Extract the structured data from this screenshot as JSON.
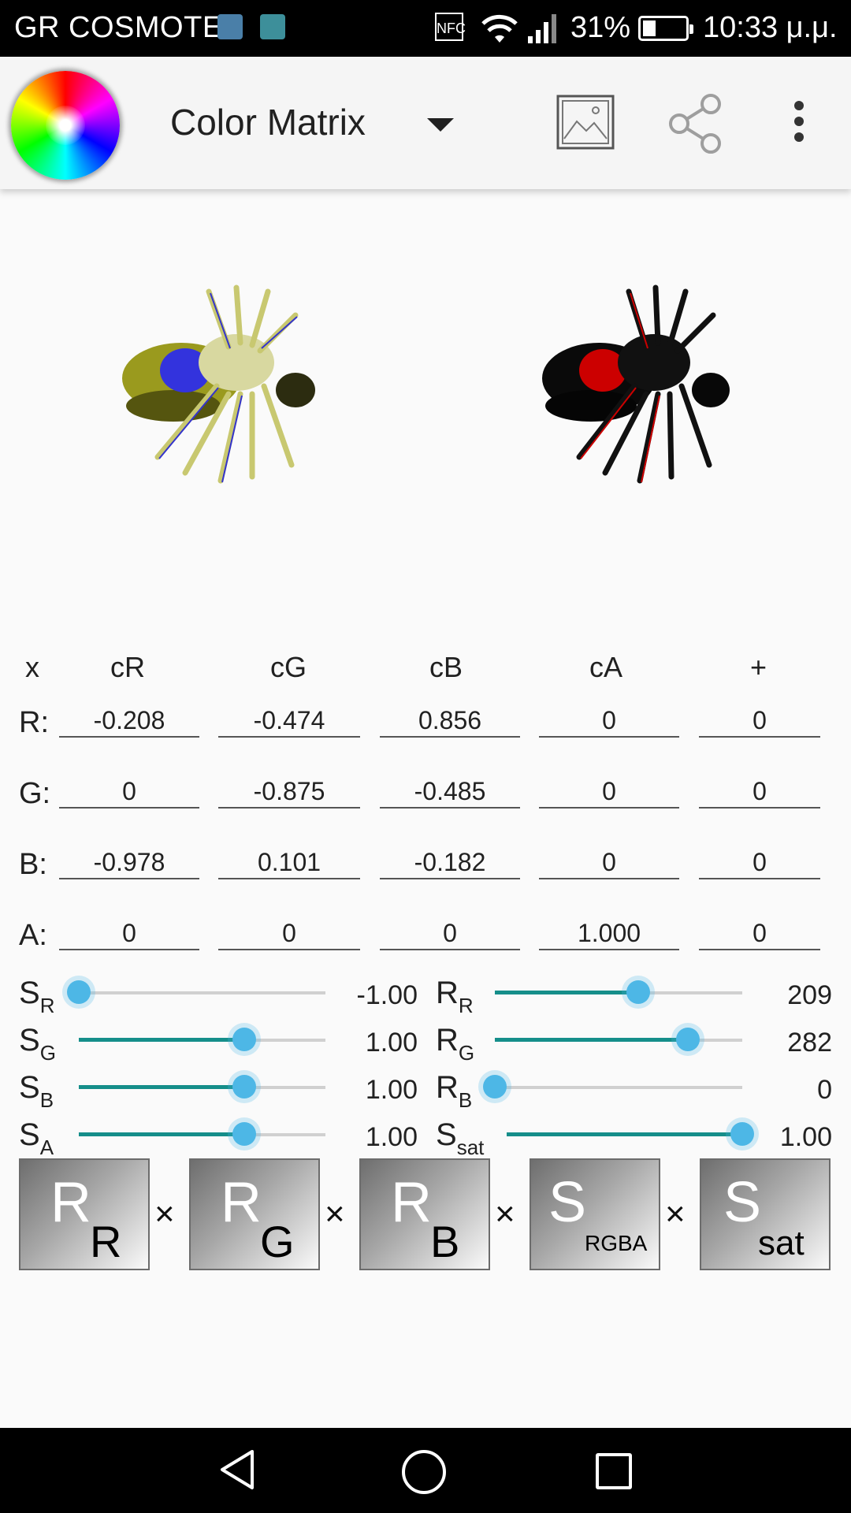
{
  "status_bar": {
    "carrier": "GR COSMOTE",
    "nfc": "NFC",
    "battery_percent": "31%",
    "time": "10:33 μ.μ.",
    "icons": [
      "app-notification-icon",
      "gallery-notification-icon",
      "nfc-icon",
      "wifi-icon",
      "signal-icon",
      "battery-icon"
    ]
  },
  "toolbar": {
    "title": "Color Matrix",
    "icons": [
      "color-wheel-logo",
      "dropdown-arrow-icon",
      "image-icon",
      "share-icon",
      "more-vert-icon"
    ]
  },
  "matrix": {
    "headers": [
      "x",
      "cR",
      "cG",
      "cB",
      "cA",
      "+"
    ],
    "rows": [
      {
        "label": "R:",
        "values": [
          "-0.208",
          "-0.474",
          "0.856",
          "0",
          "0"
        ]
      },
      {
        "label": "G:",
        "values": [
          "0",
          "-0.875",
          "-0.485",
          "0",
          "0"
        ]
      },
      {
        "label": "B:",
        "values": [
          "-0.978",
          "0.101",
          "-0.182",
          "0",
          "0"
        ]
      },
      {
        "label": "A:",
        "values": [
          "0",
          "0",
          "0",
          "1.000",
          "0"
        ]
      }
    ]
  },
  "sliders": {
    "left": [
      {
        "main": "S",
        "sub": "R",
        "value": "-1.00",
        "fraction": 0.0
      },
      {
        "main": "S",
        "sub": "G",
        "value": "1.00",
        "fraction": 0.67
      },
      {
        "main": "S",
        "sub": "B",
        "value": "1.00",
        "fraction": 0.67
      },
      {
        "main": "S",
        "sub": "A",
        "value": "1.00",
        "fraction": 0.67
      }
    ],
    "right": [
      {
        "main": "R",
        "sub": "R",
        "value": "209",
        "fraction": 0.58
      },
      {
        "main": "R",
        "sub": "G",
        "value": "282",
        "fraction": 0.78
      },
      {
        "main": "R",
        "sub": "B",
        "value": "0",
        "fraction": 0.0
      },
      {
        "main": "S",
        "sub": "sat",
        "value": "1.00",
        "fraction": 1.0
      }
    ]
  },
  "buttons": [
    {
      "main": "R",
      "sub": "R"
    },
    {
      "main": "R",
      "sub": "G"
    },
    {
      "main": "R",
      "sub": "B"
    },
    {
      "main": "S",
      "sub": "RGBA"
    },
    {
      "main": "S",
      "sub": "sat"
    }
  ],
  "multiply_symbol": "×",
  "colors": {
    "accent": "#158e8a",
    "thumb": "#4db7e6",
    "track": "#d0d0d0"
  },
  "navbar": {
    "icons": [
      "back-icon",
      "home-icon",
      "recents-icon"
    ]
  }
}
